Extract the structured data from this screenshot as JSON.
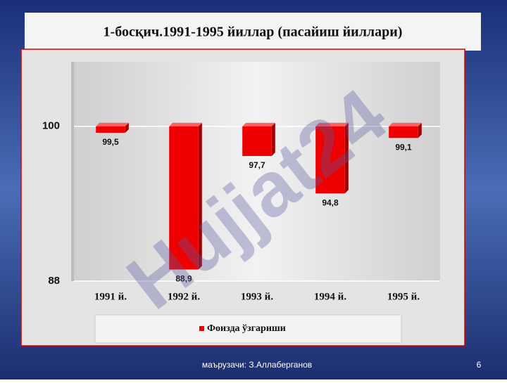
{
  "chart_data": {
    "type": "bar",
    "title": "1-босқич.1991-1995 йиллар (пасайиш йиллари)",
    "categories": [
      "1991 й.",
      "1992 й.",
      "1993 й.",
      "1994 й.",
      "1995 й."
    ],
    "series": [
      {
        "name": "Фоизда ўзгариши",
        "color": "#ee0000",
        "values": [
          99.5,
          88.9,
          97.7,
          94.8,
          99.1
        ],
        "value_labels": [
          "99,5",
          "88,9",
          "97,7",
          "94,8",
          "99,1"
        ]
      }
    ],
    "ylim": [
      88,
      105
    ],
    "yticks": [
      88,
      100
    ],
    "bar_base": 100,
    "grid": true,
    "legend": "bottom"
  },
  "watermark": "Hujjat24",
  "footer": {
    "author": "маърузачи: З.Аллаберганов",
    "page": "6"
  }
}
